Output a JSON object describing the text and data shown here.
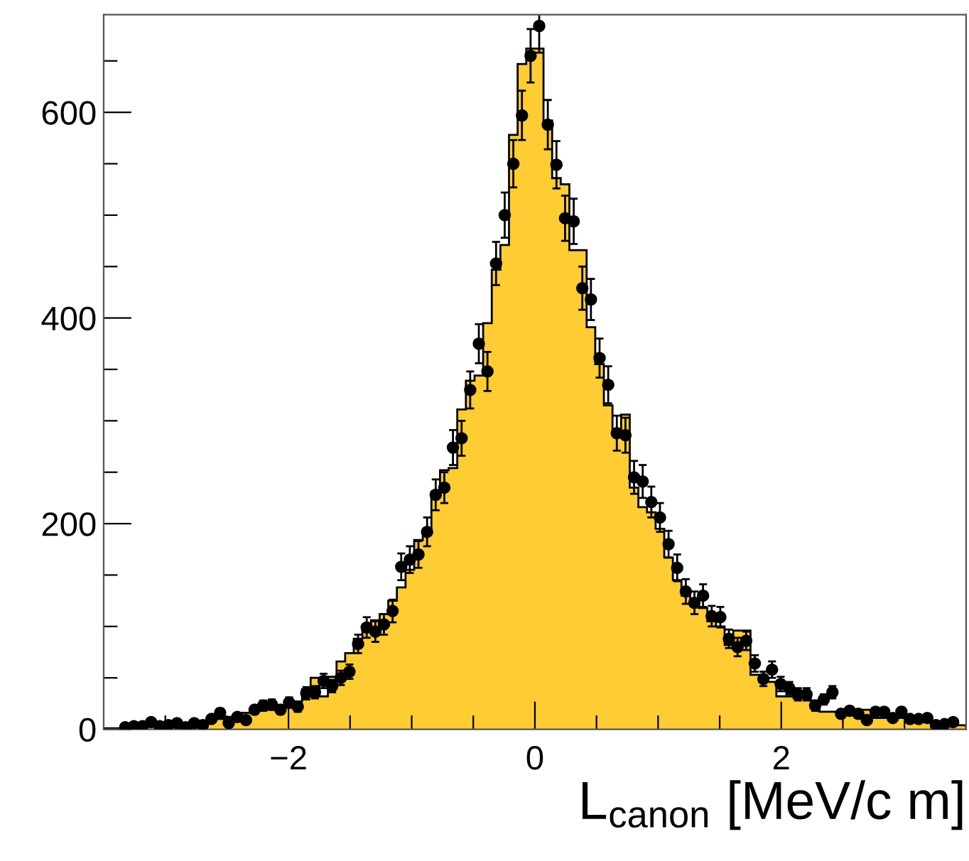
{
  "chart_data": {
    "type": "histogram",
    "xlabel": "L$_{canon}$ [MeV/c m]",
    "bins": [
      -3.5,
      -3.43,
      -3.36,
      -3.29,
      -3.22,
      -3.15,
      -3.08,
      -3.01,
      -2.94,
      -2.87,
      -2.8,
      -2.73,
      -2.66,
      -2.59,
      -2.52,
      -2.45,
      -2.38,
      -2.31,
      -2.24,
      -2.17,
      -2.1,
      -2.03,
      -1.96,
      -1.89,
      -1.82,
      -1.75,
      -1.68,
      -1.61,
      -1.54,
      -1.47,
      -1.4,
      -1.33,
      -1.26,
      -1.19,
      -1.12,
      -1.05,
      -0.98,
      -0.91,
      -0.84,
      -0.77,
      -0.7,
      -0.63,
      -0.56,
      -0.49,
      -0.42,
      -0.35,
      -0.28,
      -0.21,
      -0.14,
      -0.07,
      0,
      0.07,
      0.14,
      0.21,
      0.28,
      0.35,
      0.42,
      0.49,
      0.56,
      0.63,
      0.7,
      0.77,
      0.84,
      0.91,
      0.98,
      1.05,
      1.12,
      1.19,
      1.26,
      1.33,
      1.4,
      1.47,
      1.54,
      1.61,
      1.68,
      1.75,
      1.82,
      1.89,
      1.96,
      2.03,
      2.1,
      2.17,
      2.24,
      2.31,
      2.38,
      2.45,
      2.52,
      2.59,
      2.66,
      2.73,
      2.8,
      2.87,
      2.94,
      3.01,
      3.08,
      3.15,
      3.22,
      3.29,
      3.36,
      3.43,
      3.5
    ],
    "series": [
      {
        "color": "#ffcc33",
        "values": [
          1,
          1,
          1,
          2,
          2,
          3,
          4,
          5,
          6,
          6,
          7,
          8,
          10,
          10,
          12,
          14,
          16,
          18,
          20,
          19,
          21,
          27,
          27,
          39,
          50,
          32,
          51,
          66,
          74,
          88,
          99,
          106,
          112,
          125,
          138,
          155,
          184,
          192,
          231,
          252,
          254,
          311,
          339,
          344,
          395,
          447,
          471,
          578,
          647,
          662,
          662,
          592,
          536,
          530,
          466,
          466,
          391,
          355,
          315,
          290,
          306,
          235,
          216,
          211,
          195,
          167,
          145,
          130,
          120,
          118,
          105,
          100,
          82,
          96,
          96,
          53,
          46,
          46,
          32,
          32,
          30,
          30,
          25,
          17,
          17,
          17,
          17,
          19,
          19,
          11,
          11,
          11,
          11,
          7,
          7,
          7,
          4,
          4,
          4,
          4
        ]
      },
      {
        "type": "scatter",
        "color": "#000000",
        "marker": "circle",
        "x": [
          -3.325,
          -3.255,
          -3.185,
          -3.115,
          -3.045,
          -2.975,
          -2.905,
          -2.835,
          -2.765,
          -2.695,
          -2.625,
          -2.555,
          -2.485,
          -2.415,
          -2.345,
          -2.275,
          -2.205,
          -2.135,
          -2.065,
          -1.995,
          -1.925,
          -1.855,
          -1.785,
          -1.715,
          -1.645,
          -1.575,
          -1.505,
          -1.435,
          -1.365,
          -1.295,
          -1.225,
          -1.155,
          -1.085,
          -1.015,
          -0.945,
          -0.875,
          -0.805,
          -0.735,
          -0.665,
          -0.595,
          -0.525,
          -0.455,
          -0.385,
          -0.315,
          -0.245,
          -0.175,
          -0.105,
          -0.035,
          0.035,
          0.105,
          0.175,
          0.245,
          0.315,
          0.385,
          0.455,
          0.525,
          0.595,
          0.665,
          0.735,
          0.805,
          0.875,
          0.945,
          1.015,
          1.085,
          1.155,
          1.225,
          1.295,
          1.365,
          1.435,
          1.505,
          1.575,
          1.645,
          1.715,
          1.785,
          1.855,
          1.925,
          1.995,
          2.065,
          2.135,
          2.205,
          2.275,
          2.345,
          2.415,
          2.485,
          2.555,
          2.625,
          2.695,
          2.765,
          2.835,
          2.905,
          2.975,
          3.045,
          3.115,
          3.185,
          3.255,
          3.325,
          3.395
        ],
        "values": [
          2,
          3,
          3,
          7,
          3,
          4,
          6,
          2,
          6,
          4,
          10,
          16,
          6,
          12,
          9,
          19,
          23,
          24,
          19,
          26,
          22,
          35,
          36,
          47,
          42,
          50,
          56,
          83,
          99,
          95,
          102,
          115,
          158,
          165,
          170,
          192,
          228,
          235,
          274,
          283,
          330,
          375,
          348,
          453,
          500,
          550,
          597,
          655,
          684,
          588,
          549,
          497,
          494,
          429,
          418,
          361,
          335,
          288,
          286,
          245,
          241,
          221,
          206,
          180,
          157,
          134,
          123,
          130,
          110,
          109,
          88,
          80,
          86,
          64,
          49,
          58,
          44,
          40,
          34,
          34,
          23,
          29,
          36,
          15,
          18,
          15,
          9,
          17,
          17,
          11,
          17,
          10,
          10,
          11,
          4,
          5,
          7
        ],
        "errors": [
          1,
          2,
          2,
          3,
          2,
          2,
          2,
          1,
          2,
          2,
          3,
          4,
          2,
          3,
          3,
          4,
          5,
          5,
          4,
          5,
          5,
          6,
          6,
          7,
          6,
          7,
          7,
          9,
          10,
          10,
          10,
          11,
          13,
          13,
          13,
          14,
          15,
          15,
          17,
          17,
          18,
          19,
          19,
          21,
          22,
          23,
          24,
          26,
          26,
          24,
          23,
          22,
          22,
          21,
          20,
          19,
          18,
          17,
          17,
          16,
          16,
          15,
          14,
          13,
          13,
          12,
          11,
          11,
          10,
          10,
          9,
          9,
          9,
          8,
          7,
          8,
          7,
          6,
          6,
          6,
          5,
          5,
          6,
          4,
          4,
          4,
          3,
          4,
          4,
          3,
          4,
          3,
          3,
          3,
          2,
          2,
          3
        ]
      }
    ],
    "xlim": [
      -3.5,
      3.5
    ],
    "ylim": [
      0,
      695
    ],
    "xticks": [
      {
        "value": -3.0,
        "label": null
      },
      {
        "value": -2.5,
        "label": null
      },
      {
        "value": -2,
        "label": "−2"
      },
      {
        "value": -1.5,
        "label": null
      },
      {
        "value": -1.0,
        "label": null
      },
      {
        "value": -0.5,
        "label": null
      },
      0,
      {
        "value": 0.5,
        "label": null
      },
      {
        "value": 1.0,
        "label": null
      },
      {
        "value": 1.5,
        "label": null
      },
      2,
      {
        "value": 2.5,
        "label": null
      },
      {
        "value": 3.0,
        "label": null
      }
    ],
    "yticks": [
      0,
      {
        "value": 50,
        "label": null
      },
      {
        "value": 100,
        "label": null
      },
      {
        "value": 150,
        "label": null
      },
      200,
      {
        "value": 250,
        "label": null
      },
      {
        "value": 300,
        "label": null
      },
      {
        "value": 350,
        "label": null
      },
      400,
      {
        "value": 450,
        "label": null
      },
      {
        "value": 500,
        "label": null
      },
      {
        "value": 550,
        "label": null
      },
      600,
      {
        "value": 650,
        "label": null
      }
    ],
    "grid": false,
    "legend": false
  }
}
